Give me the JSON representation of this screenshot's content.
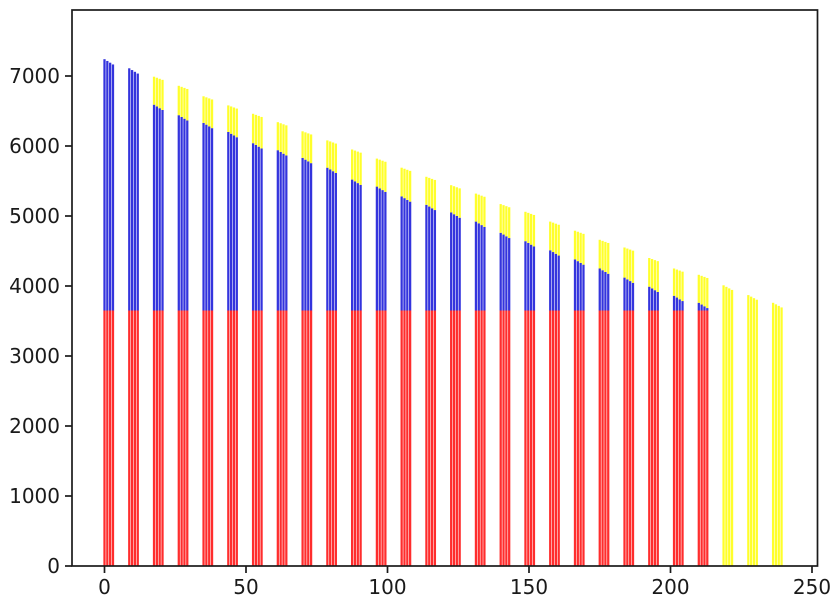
{
  "figure": {
    "background_color": "#ffffff",
    "title": "",
    "legend": null
  },
  "chart_data": {
    "type": "bar",
    "title": "",
    "xlabel": "",
    "ylabel": "",
    "grid": false,
    "legend_position": null,
    "xlim": [
      -11.5,
      252
    ],
    "ylim": [
      0,
      7940
    ],
    "x_ticks": [
      0,
      50,
      100,
      150,
      200,
      250
    ],
    "x_tick_labels": [
      "0",
      "50",
      "100",
      "150",
      "200",
      "250"
    ],
    "y_ticks": [
      0,
      1000,
      2000,
      3000,
      4000,
      5000,
      6000,
      7000
    ],
    "y_tick_labels": [
      "0",
      "1000",
      "2000",
      "3000",
      "4000",
      "5000",
      "6000",
      "7000"
    ],
    "colors": {
      "red": "#ff2d2d",
      "blue": "#3434dd",
      "yellow": "#ffff2b"
    },
    "series_names": [
      "red-base",
      "blue-segment",
      "yellow-segment"
    ],
    "bar_width_units": 0.8,
    "bars_per_cluster": 4,
    "bar_offsets": [
      0,
      1,
      2,
      3
    ],
    "within_cluster_step": {
      "blue": 25,
      "yellow": 15,
      "yellow_only": 22
    },
    "red_base_level": 3650,
    "clusters": [
      {
        "x_start": 0.0,
        "red": 3650,
        "blue_top": 7240,
        "yellow_top": null
      },
      {
        "x_start": 8.75,
        "red": 3650,
        "blue_top": 7110,
        "yellow_top": null
      },
      {
        "x_start": 17.5,
        "red": 3650,
        "blue_top": 6590,
        "yellow_top": 6990
      },
      {
        "x_start": 26.25,
        "red": 3650,
        "blue_top": 6440,
        "yellow_top": 6860
      },
      {
        "x_start": 35.0,
        "red": 3650,
        "blue_top": 6330,
        "yellow_top": 6710
      },
      {
        "x_start": 43.75,
        "red": 3650,
        "blue_top": 6200,
        "yellow_top": 6580
      },
      {
        "x_start": 52.5,
        "red": 3650,
        "blue_top": 6040,
        "yellow_top": 6460
      },
      {
        "x_start": 61.25,
        "red": 3650,
        "blue_top": 5940,
        "yellow_top": 6340
      },
      {
        "x_start": 70.0,
        "red": 3650,
        "blue_top": 5830,
        "yellow_top": 6210
      },
      {
        "x_start": 78.75,
        "red": 3650,
        "blue_top": 5690,
        "yellow_top": 6080
      },
      {
        "x_start": 87.5,
        "red": 3650,
        "blue_top": 5520,
        "yellow_top": 5950
      },
      {
        "x_start": 96.25,
        "red": 3650,
        "blue_top": 5420,
        "yellow_top": 5820
      },
      {
        "x_start": 105.0,
        "red": 3650,
        "blue_top": 5280,
        "yellow_top": 5690
      },
      {
        "x_start": 113.75,
        "red": 3650,
        "blue_top": 5160,
        "yellow_top": 5560
      },
      {
        "x_start": 122.5,
        "red": 3650,
        "blue_top": 5050,
        "yellow_top": 5440
      },
      {
        "x_start": 131.25,
        "red": 3650,
        "blue_top": 4920,
        "yellow_top": 5320
      },
      {
        "x_start": 140.0,
        "red": 3650,
        "blue_top": 4760,
        "yellow_top": 5170
      },
      {
        "x_start": 148.75,
        "red": 3650,
        "blue_top": 4640,
        "yellow_top": 5060
      },
      {
        "x_start": 157.5,
        "red": 3650,
        "blue_top": 4510,
        "yellow_top": 4920
      },
      {
        "x_start": 166.25,
        "red": 3650,
        "blue_top": 4380,
        "yellow_top": 4790
      },
      {
        "x_start": 175.0,
        "red": 3650,
        "blue_top": 4250,
        "yellow_top": 4660
      },
      {
        "x_start": 183.75,
        "red": 3650,
        "blue_top": 4120,
        "yellow_top": 4550
      },
      {
        "x_start": 192.5,
        "red": 3650,
        "blue_top": 3990,
        "yellow_top": 4400
      },
      {
        "x_start": 201.25,
        "red": 3650,
        "blue_top": 3860,
        "yellow_top": 4250
      },
      {
        "x_start": 210.0,
        "red": 3650,
        "blue_top": 3760,
        "yellow_top": 4160
      },
      {
        "x_start": 218.75,
        "red": 0,
        "blue_top": 0,
        "yellow_top": 4010
      },
      {
        "x_start": 227.5,
        "red": 0,
        "blue_top": 0,
        "yellow_top": 3870
      },
      {
        "x_start": 236.25,
        "red": 0,
        "blue_top": 0,
        "yellow_top": 3760
      }
    ]
  }
}
